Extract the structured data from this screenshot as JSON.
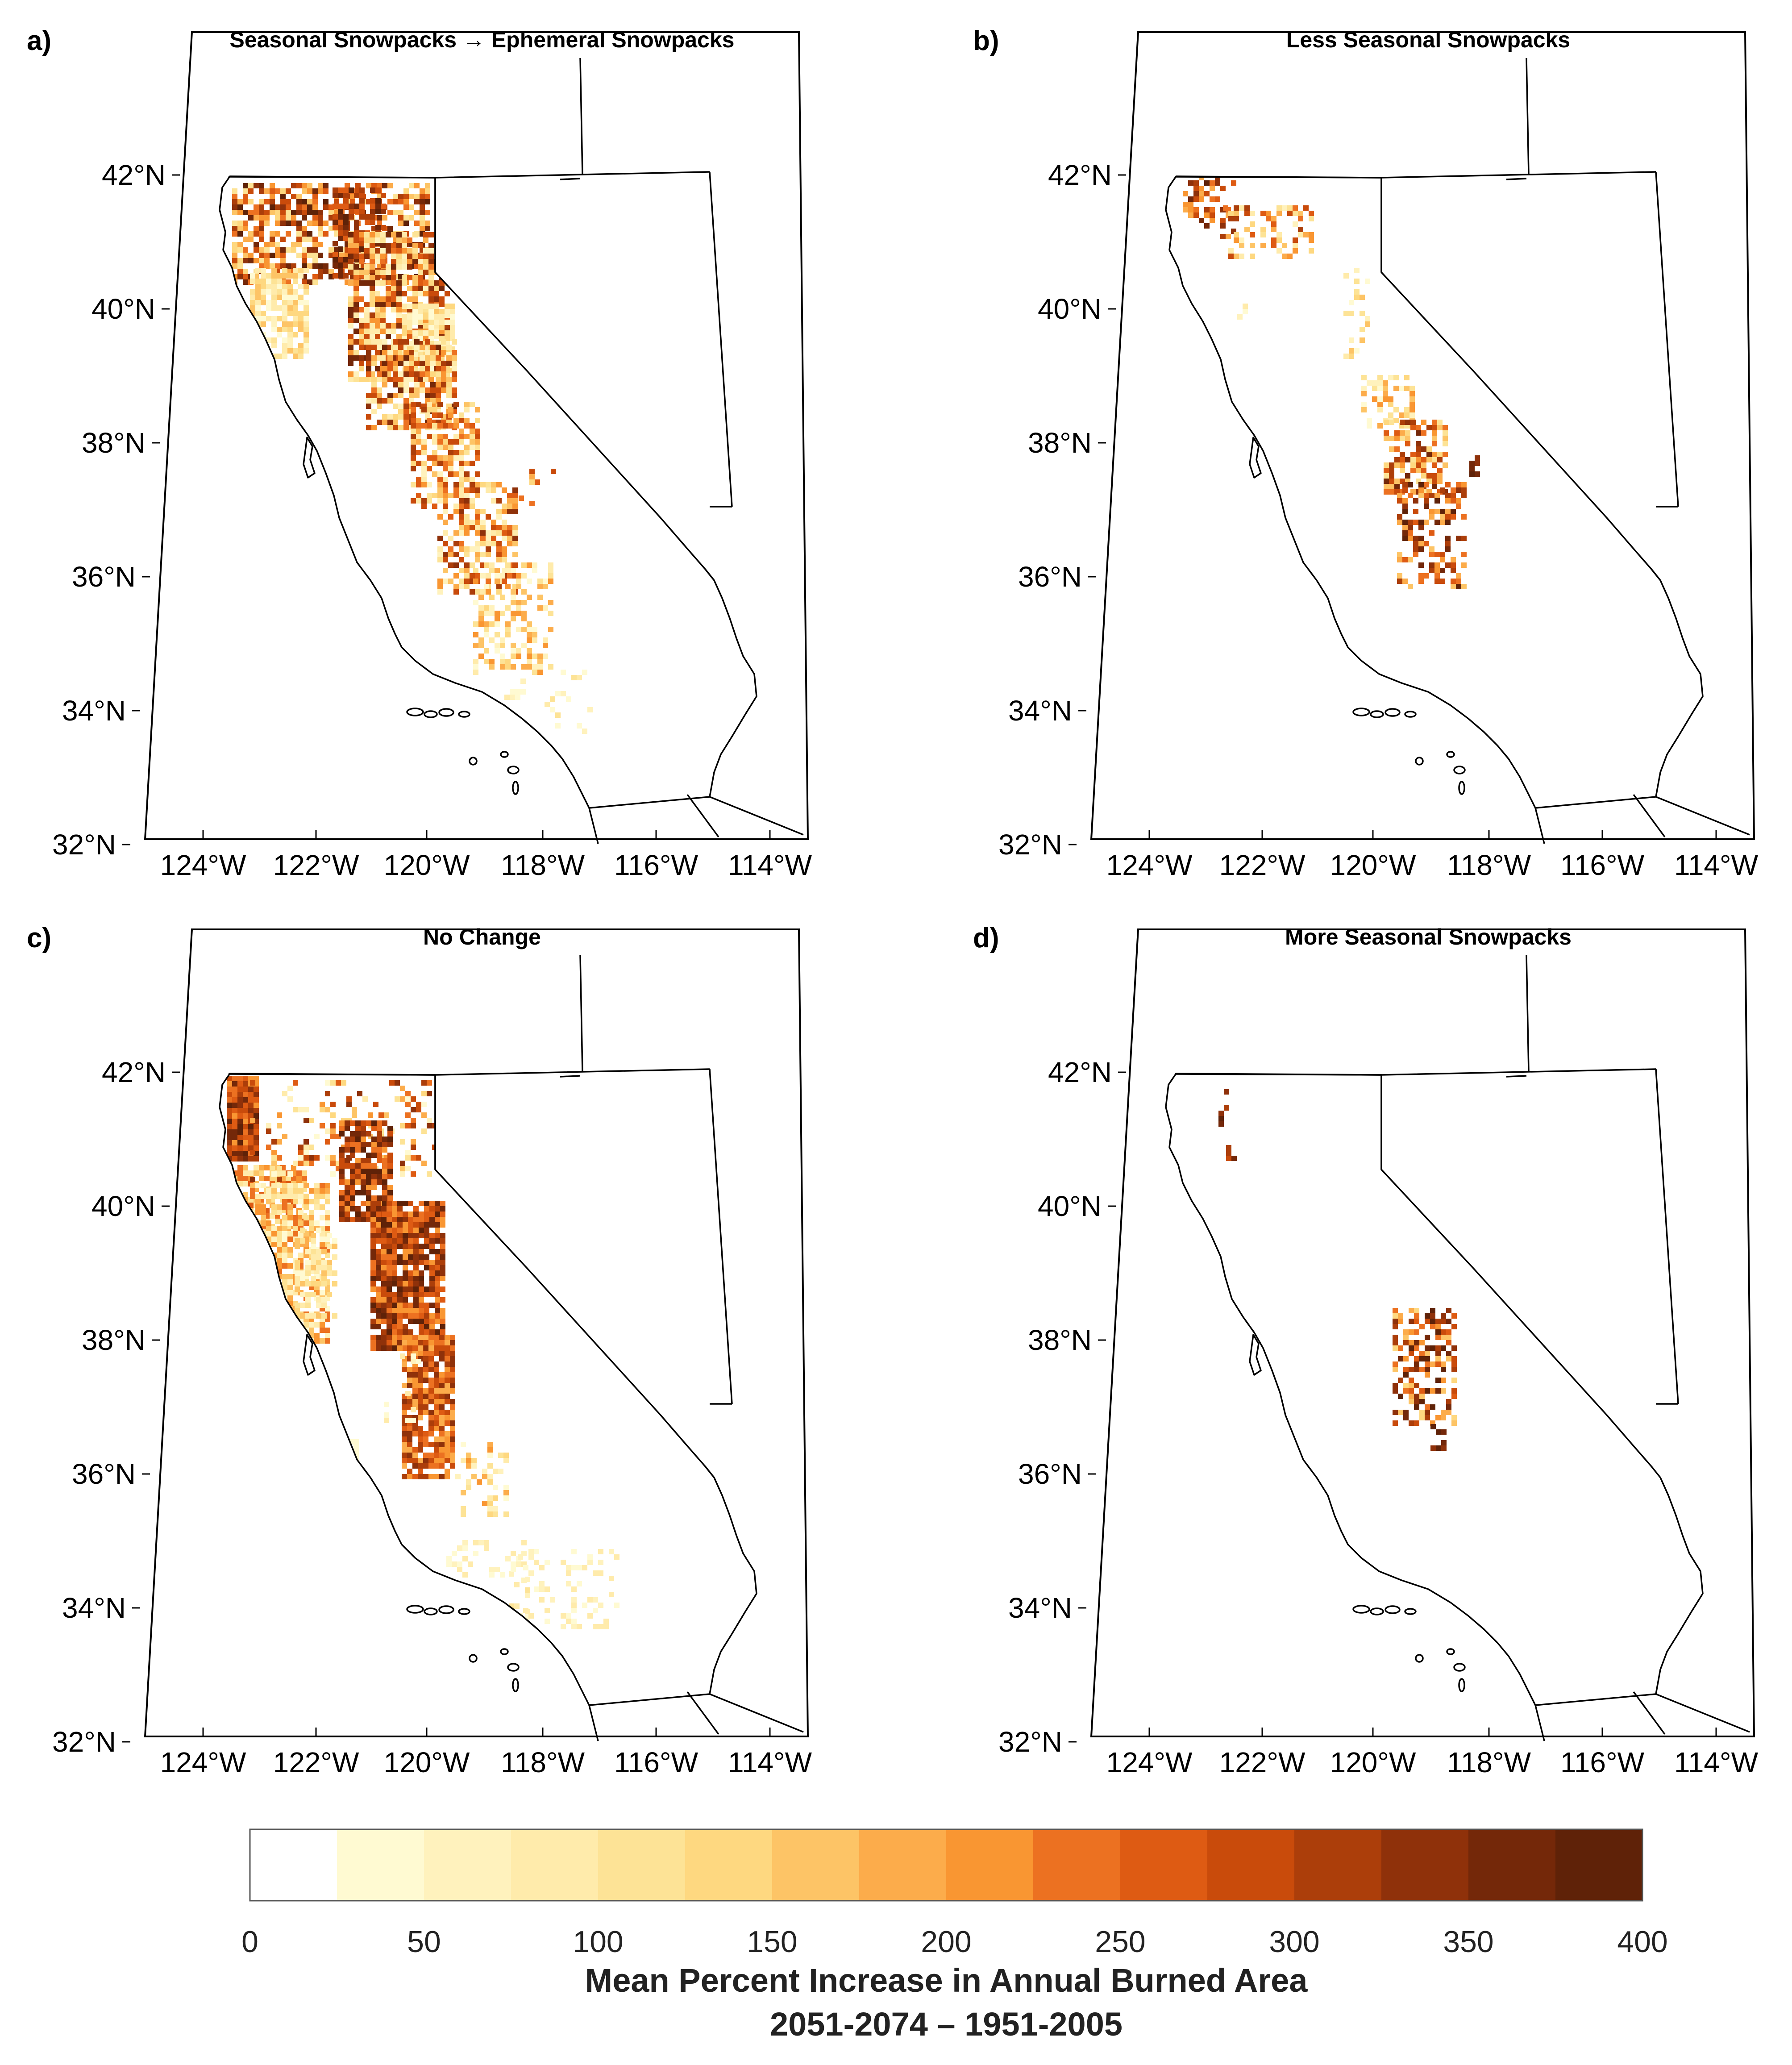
{
  "panels": [
    {
      "id": "a",
      "letter": "a)",
      "title": "Seasonal Snowpacks → Ephemeral Snowpacks"
    },
    {
      "id": "b",
      "letter": "b)",
      "title": "Less Seasonal Snowpacks"
    },
    {
      "id": "c",
      "letter": "c)",
      "title": "No Change"
    },
    {
      "id": "d",
      "letter": "d)",
      "title": "More Seasonal Snowpacks"
    }
  ],
  "latitude_labels": [
    "42°N",
    "40°N",
    "38°N",
    "36°N",
    "34°N",
    "32°N"
  ],
  "longitude_labels": [
    "124°W",
    "122°W",
    "120°W",
    "118°W",
    "116°W",
    "114°W"
  ],
  "colorbar": {
    "ticks": [
      "0",
      "50",
      "100",
      "150",
      "200",
      "250",
      "300",
      "350",
      "400"
    ],
    "colors": [
      "#ffffff",
      "#fffad2",
      "#fff2bd",
      "#ffebab",
      "#fde396",
      "#fed880",
      "#fdc466",
      "#fcac4b",
      "#f99632",
      "#ec7121",
      "#de5b13",
      "#c94b0b",
      "#ac3e0a",
      "#8f310a",
      "#742809",
      "#5f2208"
    ],
    "label_line1": "Mean Percent Increase in Annual Burned Area",
    "label_line2": "2051-2074 – 1951-2005"
  }
}
